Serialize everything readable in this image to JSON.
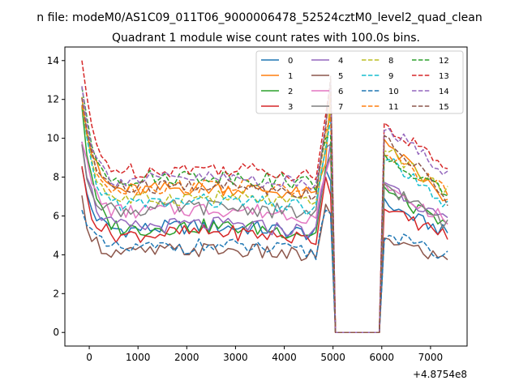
{
  "chart_data": {
    "type": "line",
    "suptitle": "n file: modeM0/AS1C09_011T06_9000006478_52524cztM0_level2_quad_clean",
    "title": "Quadrant 1 module wise count rates with 100.0s bins.",
    "xlabel": "",
    "ylabel": "",
    "x_offset_label": "+4.8754e8",
    "xlim": [
      -500,
      7750
    ],
    "ylim": [
      -0.7,
      14.7
    ],
    "xticks": [
      0,
      1000,
      2000,
      3000,
      4000,
      5000,
      6000,
      7000
    ],
    "yticks": [
      0,
      2,
      4,
      6,
      8,
      10,
      12,
      14
    ],
    "grid": false,
    "legend": {
      "placement": "top-right",
      "columns": 4
    },
    "x": [
      -150,
      -50,
      50,
      150,
      250,
      350,
      450,
      550,
      650,
      750,
      850,
      950,
      1050,
      1150,
      1250,
      1350,
      1450,
      1550,
      1650,
      1750,
      1850,
      1950,
      2050,
      2150,
      2250,
      2350,
      2450,
      2550,
      2650,
      2750,
      2850,
      2950,
      3050,
      3150,
      3250,
      3350,
      3450,
      3550,
      3650,
      3750,
      3850,
      3950,
      4050,
      4150,
      4250,
      4350,
      4450,
      4550,
      4650,
      4750,
      4850,
      4950,
      5050,
      5950,
      6050,
      6150,
      6250,
      6350,
      6450,
      6550,
      6650,
      6750,
      6850,
      6950,
      7050,
      7150,
      7250,
      7350
    ],
    "series": [
      {
        "name": "0",
        "color": "#1f77b4",
        "dash": "solid",
        "start": 8.3,
        "base": 5.0,
        "end": 5.1,
        "peak": 8.4,
        "after": 6.5
      },
      {
        "name": "1",
        "color": "#ff7f0e",
        "dash": "solid",
        "start": 12.4,
        "base": 7.0,
        "end": 6.7,
        "peak": 8.7,
        "after": 9.6
      },
      {
        "name": "2",
        "color": "#2ca02c",
        "dash": "solid",
        "start": 11.7,
        "base": 5.0,
        "end": 5.4,
        "peak": 8.5,
        "after": 7.2
      },
      {
        "name": "3",
        "color": "#d62728",
        "dash": "solid",
        "start": 8.3,
        "base": 4.7,
        "end": 5.0,
        "peak": 8.0,
        "after": 6.2
      },
      {
        "name": "4",
        "color": "#9467bd",
        "dash": "solid",
        "start": 10.1,
        "base": 5.1,
        "end": 5.6,
        "peak": 8.2,
        "after": 7.6
      },
      {
        "name": "5",
        "color": "#8c564b",
        "dash": "solid",
        "start": 6.8,
        "base": 3.8,
        "end": 3.7,
        "peak": 6.6,
        "after": 4.8
      },
      {
        "name": "6",
        "color": "#e377c2",
        "dash": "solid",
        "start": 10.1,
        "base": 5.9,
        "end": 5.8,
        "peak": 8.2,
        "after": 7.3
      },
      {
        "name": "7",
        "color": "#7f7f7f",
        "dash": "solid",
        "start": 9.3,
        "base": 6.0,
        "end": 5.5,
        "peak": 9.5,
        "after": 7.5
      },
      {
        "name": "8",
        "color": "#bcbd22",
        "dash": "dashed",
        "start": 12.3,
        "base": 6.5,
        "end": 7.2,
        "peak": 9.6,
        "after": 9.3
      },
      {
        "name": "9",
        "color": "#17becf",
        "dash": "dashed",
        "start": 11.5,
        "base": 6.3,
        "end": 6.5,
        "peak": 9.4,
        "after": 8.9
      },
      {
        "name": "10",
        "color": "#1f77b4",
        "dash": "dashed",
        "start": 6.7,
        "base": 4.0,
        "end": 3.9,
        "peak": 6.3,
        "after": 5.0
      },
      {
        "name": "11",
        "color": "#ff7f0e",
        "dash": "dashed",
        "start": 11.9,
        "base": 7.1,
        "end": 7.2,
        "peak": 10.3,
        "after": 9.1
      },
      {
        "name": "12",
        "color": "#2ca02c",
        "dash": "dashed",
        "start": 12.5,
        "base": 7.6,
        "end": 7.2,
        "peak": 10.0,
        "after": 8.8
      },
      {
        "name": "13",
        "color": "#d62728",
        "dash": "dashed",
        "start": 14.0,
        "base": 8.0,
        "end": 8.5,
        "peak": 11.2,
        "after": 10.6
      },
      {
        "name": "14",
        "color": "#9467bd",
        "dash": "dashed",
        "start": 13.0,
        "base": 7.5,
        "end": 8.2,
        "peak": 10.7,
        "after": 10.5
      },
      {
        "name": "15",
        "color": "#8c564b",
        "dash": "dashed",
        "start": 12.2,
        "base": 7.1,
        "end": 6.8,
        "peak": 10.5,
        "after": 10.0
      }
    ]
  }
}
